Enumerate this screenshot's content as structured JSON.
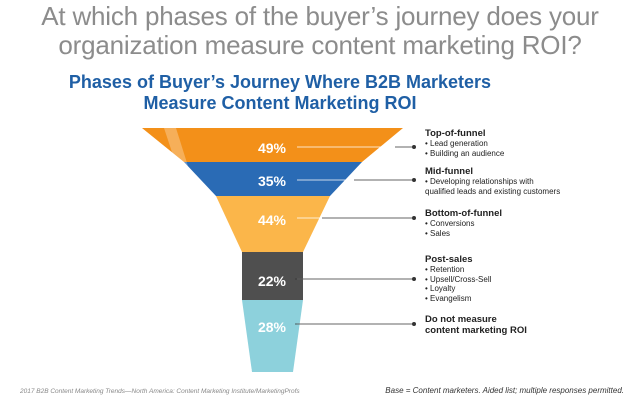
{
  "headline": {
    "line1": "At which phases of the buyer’s journey does your",
    "line2": "organization measure content marketing ROI?"
  },
  "chart_data": {
    "type": "funnel",
    "title_line1": "Phases of Buyer’s Journey Where B2B Marketers",
    "title_line2": "Measure Content Marketing ROI",
    "unit": "%",
    "segments": [
      {
        "name": "Top-of-funnel",
        "value": 49,
        "label": "49%",
        "color": "#f39019",
        "bullets": [
          "• Lead generation",
          "• Building an audience"
        ]
      },
      {
        "name": "Mid-funnel",
        "value": 35,
        "label": "35%",
        "color": "#2a6bb5",
        "bullets": [
          "• Developing relationships with",
          "qualified leads and existing customers"
        ]
      },
      {
        "name": "Bottom-of-funnel",
        "value": 44,
        "label": "44%",
        "color": "#fbb64a",
        "bullets": [
          "• Conversions",
          "• Sales"
        ]
      },
      {
        "name": "Post-sales",
        "value": 22,
        "label": "22%",
        "color": "#4f4f4f",
        "bullets": [
          "• Retention",
          "• Upsell/Cross-Sell",
          "• Loyalty",
          "• Evangelism"
        ]
      },
      {
        "name": "Do not measure content marketing ROI",
        "title_lines": [
          "Do not measure",
          "content marketing ROI"
        ],
        "value": 28,
        "label": "28%",
        "color": "#8dd1dc",
        "bullets": []
      }
    ]
  },
  "footer": {
    "source": "2017 B2B Content Marketing Trends—North America: Content Marketing Institute/MarketingProfs",
    "base_note": "Base = Content marketers. Aided list; multiple responses permitted."
  }
}
